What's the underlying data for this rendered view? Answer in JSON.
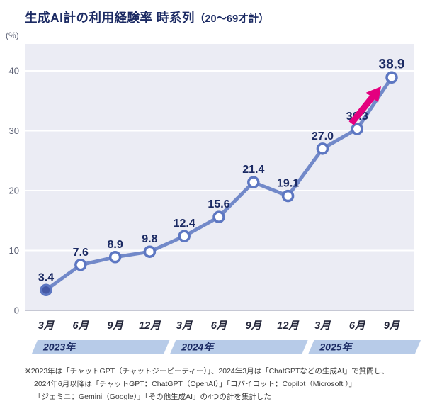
{
  "header": {
    "title": "生成AI計の利用経験率 時系列",
    "title_suffix": "（20〜69才計）"
  },
  "chart_data": {
    "type": "line",
    "title": "生成AI計の利用経験率 時系列（20〜69才計）",
    "unit_label": "(%)",
    "categories": [
      "3月",
      "6月",
      "9月",
      "12月",
      "3月",
      "6月",
      "9月",
      "12月",
      "3月",
      "6月",
      "9月"
    ],
    "values": [
      3.4,
      7.6,
      8.9,
      9.8,
      12.4,
      15.6,
      21.4,
      19.1,
      27.0,
      30.3,
      38.9
    ],
    "point_labels": [
      "3.4",
      "7.6",
      "8.9",
      "9.8",
      "12.4",
      "15.6",
      "21.4",
      "19.1",
      "27.0",
      "30.3",
      "38.9"
    ],
    "ylim": [
      0,
      40
    ],
    "yticks": [
      0,
      10,
      20,
      30,
      40
    ],
    "grid": true,
    "legend": "none",
    "year_bands": [
      {
        "label": "2023年",
        "start": 0,
        "end": 3
      },
      {
        "label": "2024年",
        "start": 4,
        "end": 7
      },
      {
        "label": "2025年",
        "start": 8,
        "end": 10
      }
    ],
    "annotations": [
      {
        "type": "arrow",
        "note": "upward-trend-arrow",
        "between": [
          "30.3",
          "38.9"
        ]
      }
    ],
    "colors": {
      "line": "#7289c9",
      "point_ring": "#5d77c2",
      "point_fill": "#ffffff",
      "first_point_fill": "#4458a5",
      "label": "#1b2a63",
      "arrow": "#e4007f",
      "plot_bg": "#ebecf4",
      "grid": "#ffffff",
      "axis": "#b3b6c6",
      "tick": "#5a5f73",
      "month": "#23263a",
      "band": "#b7cbe8",
      "band_text": "#1b2a63"
    }
  },
  "footnote": {
    "lines": [
      "※2023年は「チャットGPT（チャットジーピーティー）」、2024年3月は「ChatGPTなどの生成AI」で質問し、",
      "2024年6月以降は「チャットGPT：ChatGPT（OpenAI）」「コパイロット：Copilot（Microsoft ）」",
      "「ジェミニ：Gemini（Google）」「その他生成AI」の4つの計を集計した"
    ]
  }
}
